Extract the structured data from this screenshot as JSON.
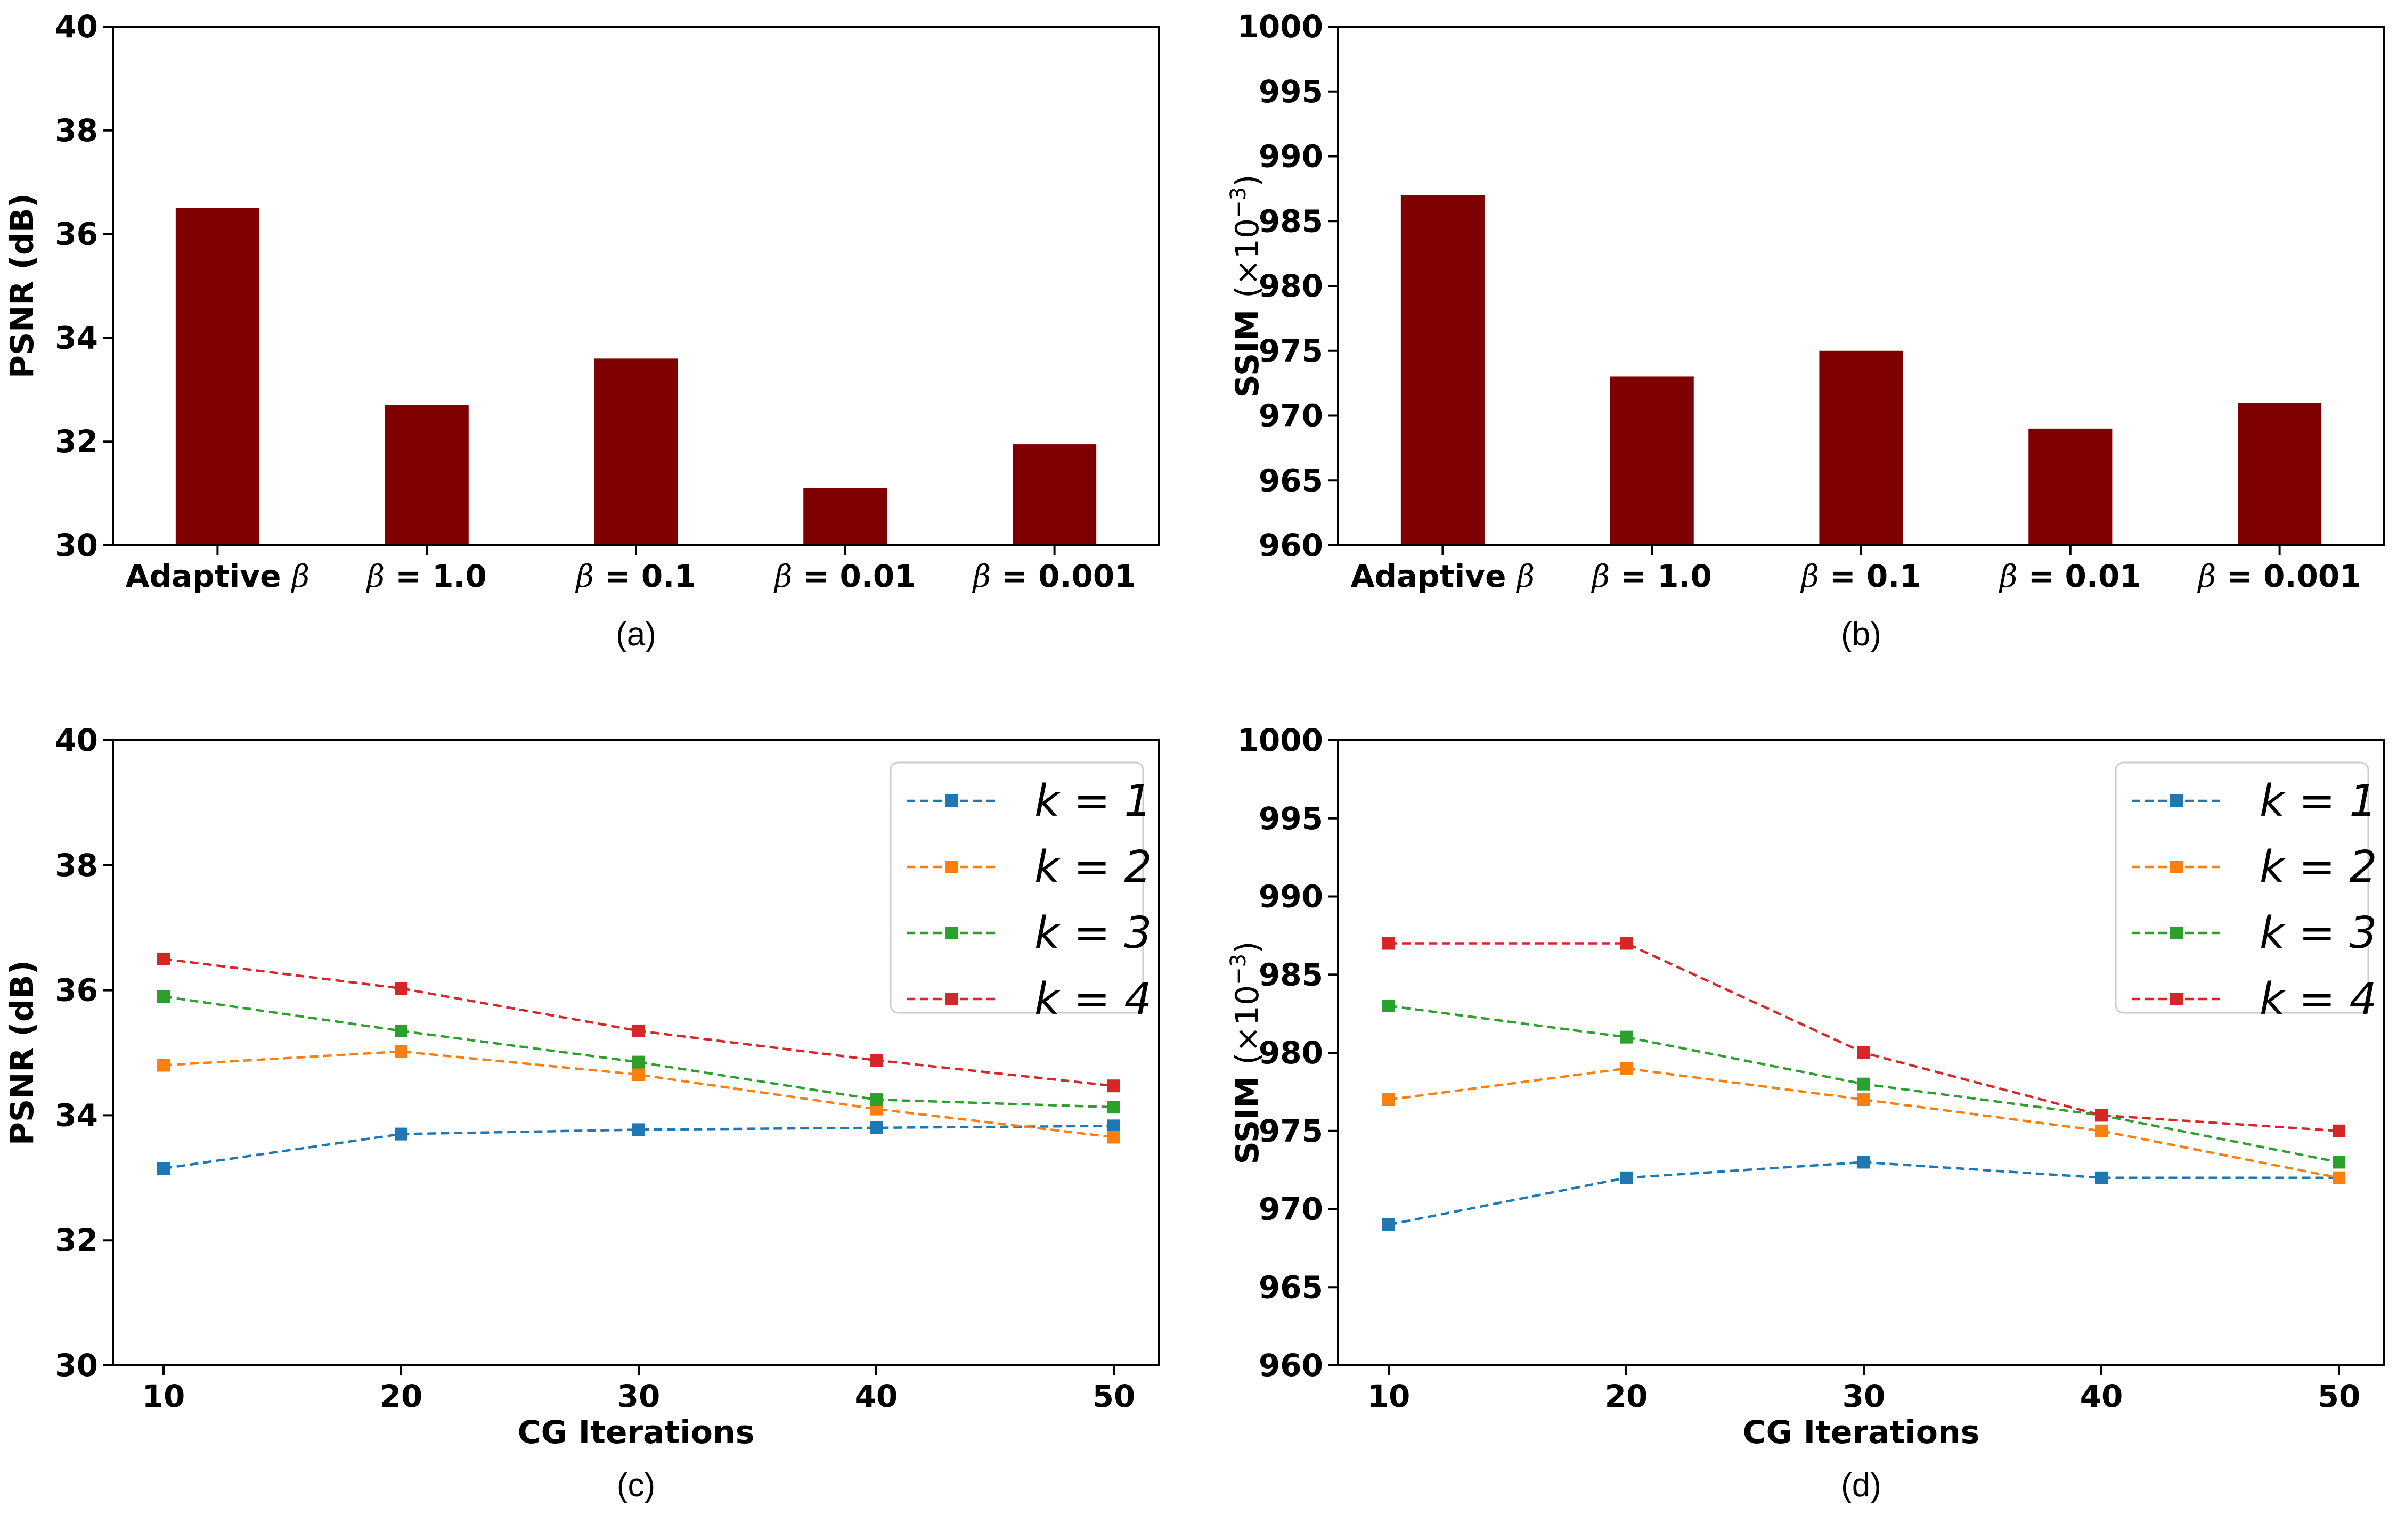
{
  "chart_data": [
    {
      "id": "a",
      "type": "bar",
      "panel_label": "(a)",
      "categories": [
        "Adaptive β",
        "β = 1.0",
        "β = 0.1",
        "β = 0.01",
        "β = 0.001"
      ],
      "values": [
        36.5,
        32.7,
        33.6,
        31.1,
        31.95
      ],
      "ylabel": "PSNR (dB)",
      "xlabel": "",
      "ylim": [
        30,
        40
      ],
      "yticks": [
        "30",
        "32",
        "34",
        "36",
        "38",
        "40"
      ],
      "bar_color": "#7f0000"
    },
    {
      "id": "b",
      "type": "bar",
      "panel_label": "(b)",
      "categories": [
        "Adaptive β",
        "β = 1.0",
        "β = 0.1",
        "β = 0.01",
        "β = 0.001"
      ],
      "values": [
        987,
        973,
        975,
        969,
        971
      ],
      "ylabel_main": "SSIM",
      "ylabel_unit": "(×10",
      "ylabel_exp": "−3",
      "ylabel_close": ")",
      "xlabel": "",
      "ylim": [
        960,
        1000
      ],
      "yticks": [
        "960",
        "965",
        "970",
        "975",
        "980",
        "985",
        "990",
        "995",
        "1000"
      ],
      "bar_color": "#7f0000"
    },
    {
      "id": "c",
      "type": "line",
      "panel_label": "(c)",
      "x": [
        10,
        20,
        30,
        40,
        50
      ],
      "xticks": [
        "10",
        "20",
        "30",
        "40",
        "50"
      ],
      "xlabel": "CG Iterations",
      "ylabel": "PSNR (dB)",
      "ylim": [
        30,
        40
      ],
      "yticks": [
        "30",
        "32",
        "34",
        "36",
        "38",
        "40"
      ],
      "legend_position": "top-right",
      "series": [
        {
          "name": "k = 1",
          "color": "#1f77b4",
          "values": [
            33.15,
            33.7,
            33.77,
            33.8,
            33.83
          ]
        },
        {
          "name": "k = 2",
          "color": "#ff7f0e",
          "values": [
            34.8,
            35.02,
            34.65,
            34.1,
            33.65
          ]
        },
        {
          "name": "k = 3",
          "color": "#2ca02c",
          "values": [
            35.9,
            35.35,
            34.85,
            34.25,
            34.13
          ]
        },
        {
          "name": "k = 4",
          "color": "#d62728",
          "values": [
            36.5,
            36.03,
            35.35,
            34.88,
            34.47
          ]
        }
      ]
    },
    {
      "id": "d",
      "type": "line",
      "panel_label": "(d)",
      "x": [
        10,
        20,
        30,
        40,
        50
      ],
      "xticks": [
        "10",
        "20",
        "30",
        "40",
        "50"
      ],
      "xlabel": "CG Iterations",
      "ylabel_main": "SSIM",
      "ylabel_unit": "(×10",
      "ylabel_exp": "−3",
      "ylabel_close": ")",
      "ylim": [
        960,
        1000
      ],
      "yticks": [
        "960",
        "965",
        "970",
        "975",
        "980",
        "985",
        "990",
        "995",
        "1000"
      ],
      "legend_position": "top-right",
      "series": [
        {
          "name": "k = 1",
          "color": "#1f77b4",
          "values": [
            969,
            972,
            973,
            972,
            972
          ]
        },
        {
          "name": "k = 2",
          "color": "#ff7f0e",
          "values": [
            977,
            979,
            977,
            975,
            972
          ]
        },
        {
          "name": "k = 3",
          "color": "#2ca02c",
          "values": [
            983,
            981,
            978,
            976,
            973
          ]
        },
        {
          "name": "k = 4",
          "color": "#d62728",
          "values": [
            987,
            987,
            980,
            976,
            975
          ]
        }
      ]
    }
  ]
}
